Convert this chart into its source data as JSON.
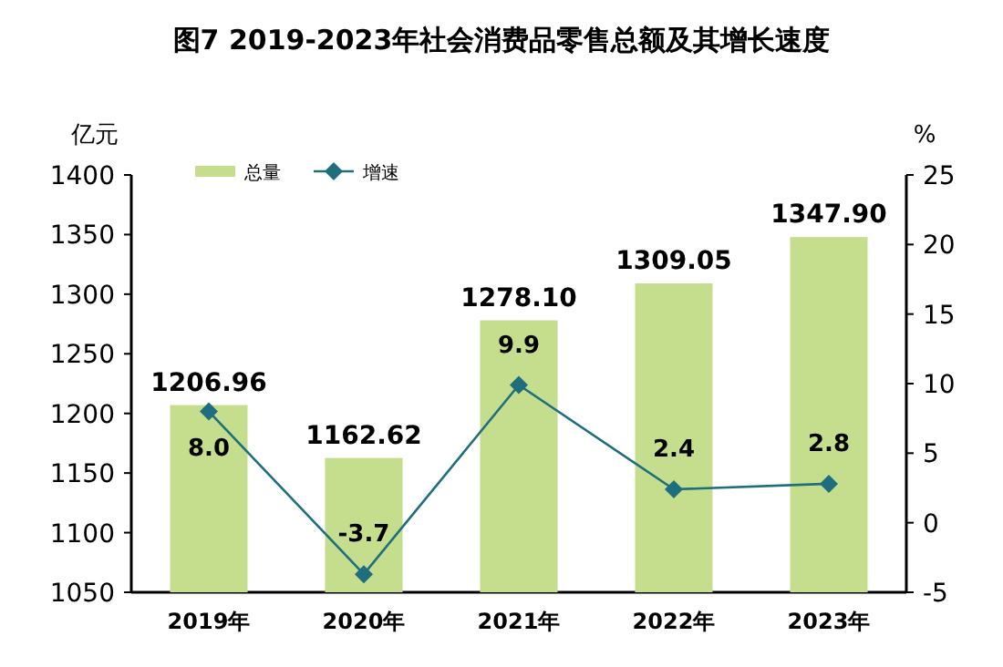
{
  "chart_data": {
    "type": "bar",
    "title": "图7  2019-2023年社会消费品零售总额及其增长速度",
    "categories": [
      "2019年",
      "2020年",
      "2021年",
      "2022年",
      "2023年"
    ],
    "series": [
      {
        "name": "总量",
        "color": "#c4de8e",
        "values": [
          1206.96,
          1162.62,
          1278.1,
          1309.05,
          1347.9
        ],
        "value_labels": [
          "1206.96",
          "1162.62",
          "1278.10",
          "1309.05",
          "1347.90"
        ]
      },
      {
        "name": "增速",
        "type": "line",
        "axis": "y2",
        "color": "#1f6e7e",
        "marker": "diamond",
        "values": [
          8.0,
          -3.7,
          9.9,
          2.4,
          2.8
        ],
        "value_labels": [
          "8.0",
          "-3.7",
          "9.9",
          "2.4",
          "2.8"
        ]
      }
    ],
    "ylabel": "亿元",
    "y2label": "%",
    "ylim": [
      1050,
      1400
    ],
    "yticks": [
      1050,
      1100,
      1150,
      1200,
      1250,
      1300,
      1350,
      1400
    ],
    "y2lim": [
      -5,
      25
    ],
    "y2ticks": [
      -5,
      0,
      5,
      10,
      15,
      20,
      25
    ],
    "legend": "top left",
    "grid": false
  }
}
